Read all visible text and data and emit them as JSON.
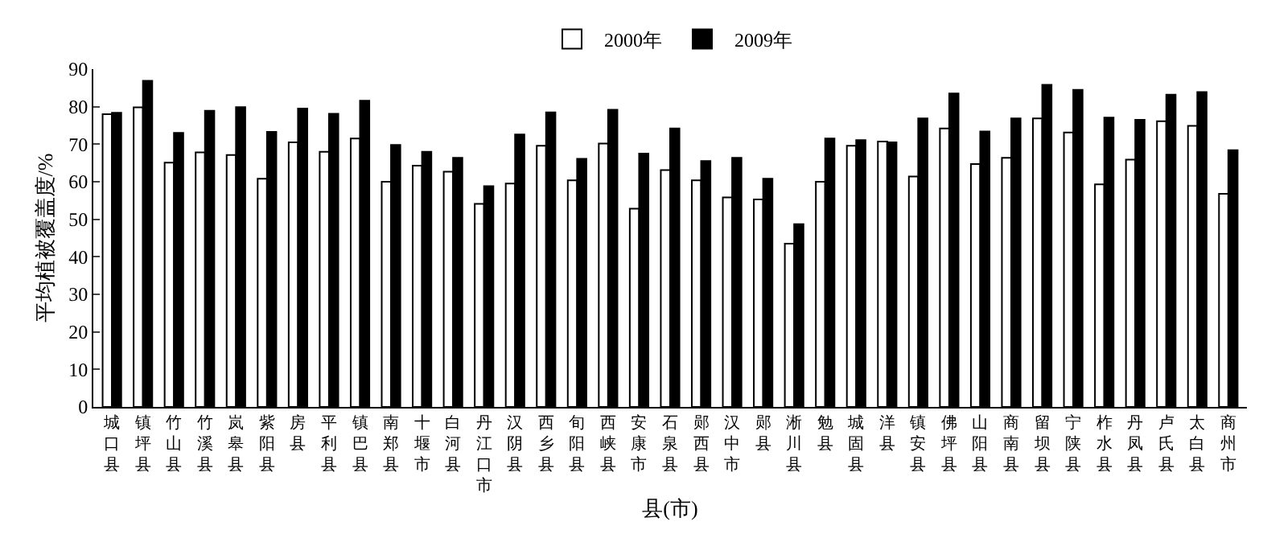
{
  "chart_data": {
    "type": "bar",
    "xlabel": "县(市)",
    "ylabel": "平均植被覆盖度/%",
    "categories": [
      "城口县",
      "镇坪县",
      "竹山县",
      "竹溪县",
      "岚皋县",
      "紫阳县",
      "房县",
      "平利县",
      "镇巴县",
      "南郑县",
      "十堰市",
      "白河县",
      "丹江口市",
      "汉阴县",
      "西乡县",
      "旬阳县",
      "西峡县",
      "安康市",
      "石泉县",
      "郧西县",
      "汉中市",
      "郧县",
      "淅川县",
      "勉县",
      "城固县",
      "洋县",
      "镇安县",
      "佛坪县",
      "山阳县",
      "商南县",
      "留坝县",
      "宁陕县",
      "柞水县",
      "丹凤县",
      "卢氏县",
      "太白县",
      "商州市"
    ],
    "series": [
      {
        "name": "2000年",
        "color": "#ffffff",
        "values": [
          78.0,
          79.8,
          65.1,
          67.8,
          67.1,
          60.8,
          70.5,
          68.0,
          71.5,
          60.0,
          64.3,
          62.7,
          54.1,
          59.5,
          69.6,
          60.4,
          70.2,
          52.8,
          63.1,
          60.4,
          55.8,
          55.3,
          43.5,
          60.0,
          69.6,
          70.7,
          61.4,
          74.2,
          64.7,
          66.4,
          76.9,
          73.1,
          59.3,
          65.9,
          76.1,
          74.9,
          56.8
        ]
      },
      {
        "name": "2009年",
        "color": "#000000",
        "values": [
          78.4,
          86.9,
          73.0,
          78.9,
          79.9,
          73.3,
          79.5,
          78.1,
          81.6,
          69.8,
          68.0,
          66.4,
          58.8,
          72.6,
          78.5,
          66.1,
          79.2,
          67.5,
          74.2,
          65.5,
          66.4,
          60.8,
          48.7,
          71.5,
          71.1,
          70.5,
          76.9,
          83.5,
          73.4,
          76.9,
          85.8,
          84.5,
          77.1,
          76.5,
          83.2,
          83.9,
          68.4
        ]
      }
    ],
    "ylim": [
      0,
      90
    ],
    "yticks": [
      0,
      10,
      20,
      30,
      40,
      50,
      60,
      70,
      80,
      90
    ],
    "legend": "top"
  }
}
